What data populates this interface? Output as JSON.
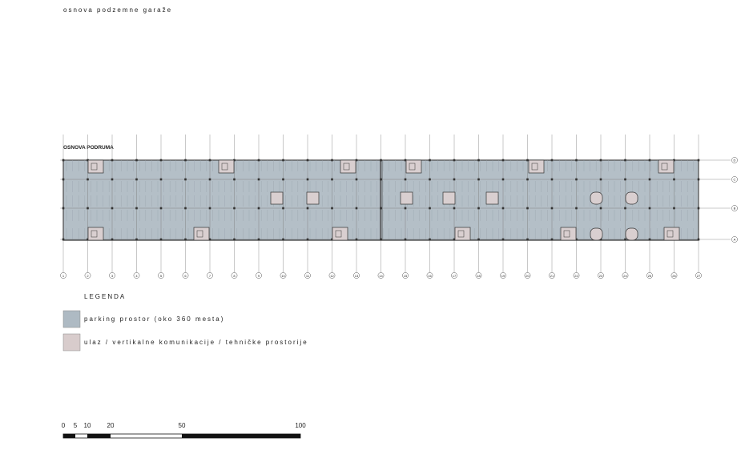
{
  "header": {
    "title": "osnova podzemne garaže"
  },
  "plan": {
    "label": "OSNOVA PODRUMA",
    "columns": [
      "1",
      "2",
      "3",
      "4",
      "5",
      "6",
      "7",
      "8",
      "9",
      "10",
      "11",
      "12",
      "13",
      "14",
      "15",
      "16",
      "17",
      "18",
      "19",
      "20",
      "21",
      "22",
      "23",
      "24",
      "25",
      "26",
      "27"
    ],
    "rows": [
      "D",
      "C",
      "B",
      "A"
    ]
  },
  "legend": {
    "title": "LEGENDA",
    "items": [
      "parking prostor (oko 360 mesta)",
      "ulaz / vertikalne komunikacije / tehničke prostorije"
    ]
  },
  "scale_bar": {
    "labels": [
      "0",
      "5",
      "10",
      "20",
      "50",
      "100"
    ]
  }
}
